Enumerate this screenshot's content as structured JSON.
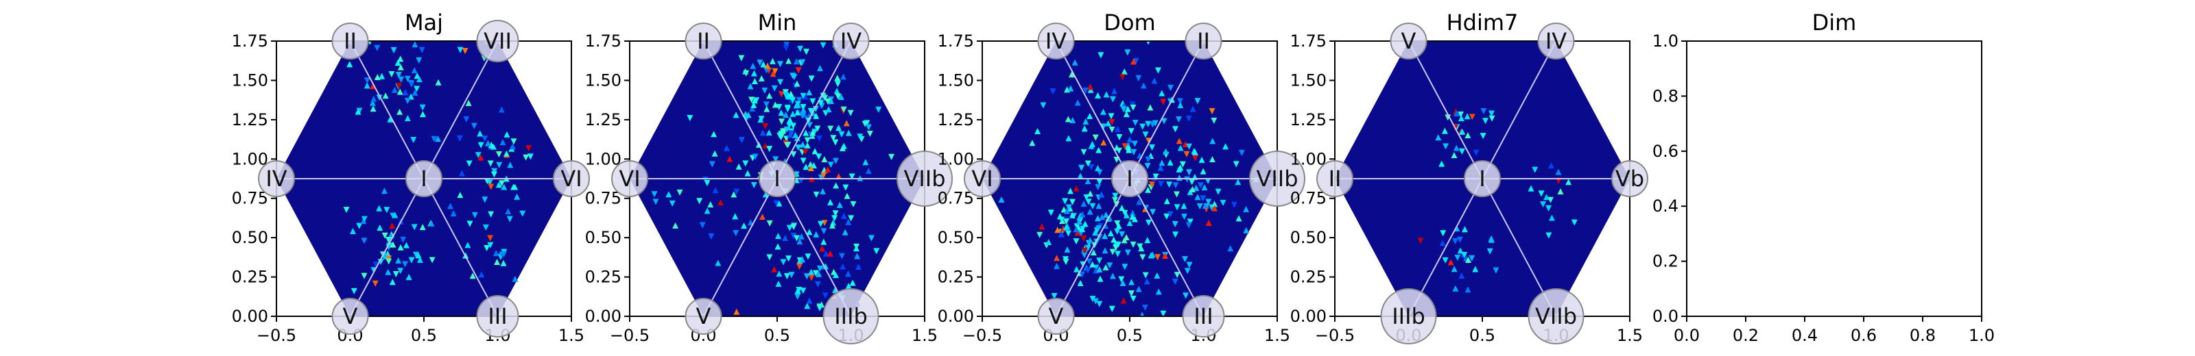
{
  "chart_data": [
    {
      "type": "heatmap",
      "title": "Maj",
      "xlim": [
        -0.5,
        1.5
      ],
      "ylim": [
        0,
        1.75
      ],
      "x_ticks": [
        "−0.5",
        "0.0",
        "0.5",
        "1.0",
        "1.5"
      ],
      "y_ticks": [
        "0.00",
        "0.25",
        "0.50",
        "0.75",
        "1.00",
        "1.25",
        "1.50",
        "1.75"
      ],
      "vertex_labels": {
        "center": "I",
        "top_left": "II",
        "top_right": "VII",
        "left": "IV",
        "right": "VI",
        "bottom_left": "V",
        "bottom_right": "III"
      },
      "hot_regions": [
        {
          "x": 0.4,
          "y": 1.5,
          "spread": 0.3,
          "count": 60
        },
        {
          "x": 0.95,
          "y": 0.95,
          "spread": 0.28,
          "count": 45
        },
        {
          "x": 0.25,
          "y": 0.45,
          "spread": 0.25,
          "count": 50
        },
        {
          "x": 0.85,
          "y": 0.5,
          "spread": 0.25,
          "count": 25
        }
      ],
      "grid": false
    },
    {
      "type": "heatmap",
      "title": "Min",
      "xlim": [
        -0.5,
        1.5
      ],
      "ylim": [
        0,
        1.75
      ],
      "x_ticks": [
        "−0.5",
        "0.0",
        "0.5",
        "1.0",
        "1.5"
      ],
      "y_ticks": [
        "0.00",
        "0.25",
        "0.50",
        "0.75",
        "1.00",
        "1.25",
        "1.50",
        "1.75"
      ],
      "vertex_labels": {
        "center": "I",
        "top_left": "II",
        "top_right": "IV",
        "left": "VI",
        "right": "VIIb",
        "bottom_left": "V",
        "bottom_right": "IIIb"
      },
      "hot_regions": [
        {
          "x": 0.75,
          "y": 1.15,
          "spread": 0.35,
          "count": 140
        },
        {
          "x": 0.5,
          "y": 1.45,
          "spread": 0.3,
          "count": 70
        },
        {
          "x": 0.75,
          "y": 0.35,
          "spread": 0.28,
          "count": 80
        },
        {
          "x": 0.15,
          "y": 0.8,
          "spread": 0.35,
          "count": 40
        }
      ],
      "grid": false
    },
    {
      "type": "heatmap",
      "title": "Dom",
      "xlim": [
        -0.5,
        1.5
      ],
      "ylim": [
        0,
        1.75
      ],
      "x_ticks": [
        "−0.5",
        "0.0",
        "0.5",
        "1.0",
        "1.5"
      ],
      "y_ticks": [
        "0.00",
        "0.25",
        "0.50",
        "0.75",
        "1.00",
        "1.25",
        "1.50",
        "1.75"
      ],
      "vertex_labels": {
        "center": "I",
        "top_left": "IV",
        "top_right": "II",
        "left": "VI",
        "right": "VIIb",
        "bottom_left": "V",
        "bottom_right": "III"
      },
      "hot_regions": [
        {
          "x": 0.25,
          "y": 0.55,
          "spread": 0.32,
          "count": 120
        },
        {
          "x": 0.5,
          "y": 1.25,
          "spread": 0.45,
          "count": 120
        },
        {
          "x": 0.95,
          "y": 0.8,
          "spread": 0.35,
          "count": 70
        },
        {
          "x": 0.5,
          "y": 0.3,
          "spread": 0.3,
          "count": 40
        }
      ],
      "grid": false
    },
    {
      "type": "heatmap",
      "title": "Hdim7",
      "xlim": [
        -0.5,
        1.5
      ],
      "ylim": [
        0,
        1.75
      ],
      "x_ticks": [
        "−0.5",
        "0.0",
        "0.5",
        "1.0",
        "1.5"
      ],
      "y_ticks": [
        "0.00",
        "0.25",
        "0.50",
        "0.75",
        "1.00",
        "1.25",
        "1.50",
        "1.75"
      ],
      "vertex_labels": {
        "center": "I",
        "top_left": "V",
        "top_right": "IV",
        "left": "II",
        "right": "Vb",
        "bottom_left": "IIIb",
        "bottom_right": "VIIb"
      },
      "hot_regions": [
        {
          "x": 0.38,
          "y": 1.2,
          "spread": 0.18,
          "count": 25
        },
        {
          "x": 0.42,
          "y": 0.35,
          "spread": 0.2,
          "count": 25
        },
        {
          "x": 0.95,
          "y": 0.75,
          "spread": 0.2,
          "count": 15
        }
      ],
      "grid": false
    },
    {
      "type": "heatmap",
      "title": "Dim",
      "xlim": [
        0,
        1
      ],
      "ylim": [
        0,
        1
      ],
      "x_ticks": [
        "0.0",
        "0.2",
        "0.4",
        "0.6",
        "0.8",
        "1.0"
      ],
      "y_ticks": [
        "0.0",
        "0.2",
        "0.4",
        "0.6",
        "0.8",
        "1.0"
      ],
      "empty": true,
      "grid": false
    }
  ],
  "colors": {
    "background": "#0a0a8c",
    "colormap": "jet",
    "vertex_circle_fill": "#dcdcf0",
    "vertex_circle_stroke": "#888888",
    "guide_lines": "#c8c8ff",
    "axis": "#000000"
  }
}
